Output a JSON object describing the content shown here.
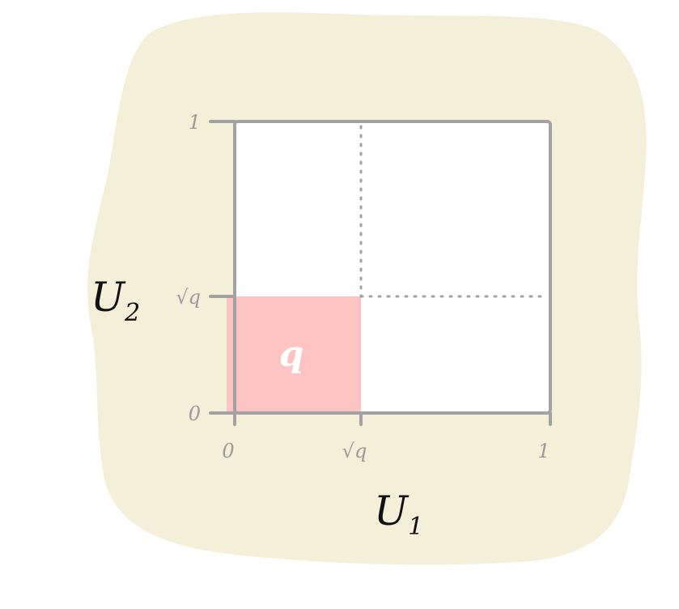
{
  "colors": {
    "backdrop": "#f4efd8",
    "plot_fill": "#ffffff",
    "frame": "#a2a2a2",
    "region": "#fcc3c3",
    "region_label": "#ffffff",
    "axis_label": "#111111"
  },
  "axes": {
    "x": {
      "label": "U",
      "subscript": "1",
      "range": [
        0,
        1
      ]
    },
    "y": {
      "label": "U",
      "subscript": "2",
      "range": [
        0,
        1
      ]
    }
  },
  "ticks": {
    "x": [
      {
        "value": 0,
        "label": "0"
      },
      {
        "value": 0.4,
        "label": "√q"
      },
      {
        "value": 1,
        "label": "1"
      }
    ],
    "y": [
      {
        "value": 0,
        "label": "0"
      },
      {
        "value": 0.4,
        "label": "√q"
      },
      {
        "value": 1,
        "label": "1"
      }
    ]
  },
  "region": {
    "x_range": [
      0,
      0.4
    ],
    "y_range": [
      0,
      0.4
    ],
    "label": "q"
  },
  "guides": {
    "at": 0.4,
    "style": "dotted"
  }
}
